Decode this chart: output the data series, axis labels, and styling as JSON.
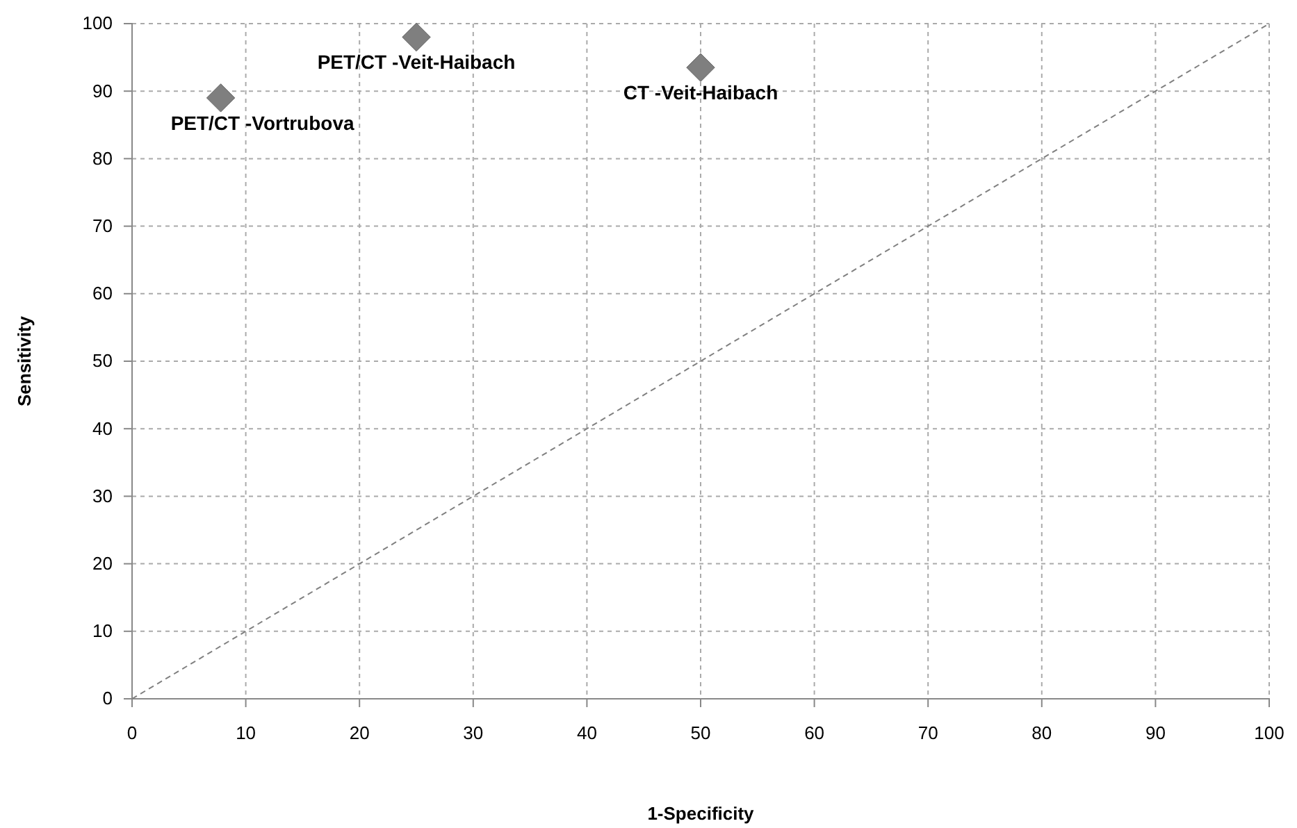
{
  "chart_data": {
    "type": "scatter",
    "xlabel": "1-Specificity",
    "ylabel": "Sensitivity",
    "xlim": [
      0,
      100
    ],
    "ylim": [
      0,
      100
    ],
    "xticks": [
      0,
      10,
      20,
      30,
      40,
      50,
      60,
      70,
      80,
      90,
      100
    ],
    "yticks": [
      0,
      10,
      20,
      30,
      40,
      50,
      60,
      70,
      80,
      90,
      100
    ],
    "grid": true,
    "series": [
      {
        "color": "#7f7f7f",
        "marker": "diamond",
        "x": [
          7.8,
          25,
          50
        ],
        "values": [
          89,
          98,
          93.5
        ]
      },
      {
        "type": "line",
        "color": "#808080",
        "line_style": "dashed",
        "marker": "none",
        "x": [
          0,
          100
        ],
        "values": [
          0,
          100
        ]
      }
    ],
    "annotations": [
      {
        "text": "PET/CT -Vortrubova",
        "x": 7.8,
        "y": 89
      },
      {
        "text": "PET/CT -Veit-Haibach",
        "x": 25,
        "y": 98
      },
      {
        "text": "CT -Veit-Haibach",
        "x": 50,
        "y": 93.5
      }
    ]
  }
}
